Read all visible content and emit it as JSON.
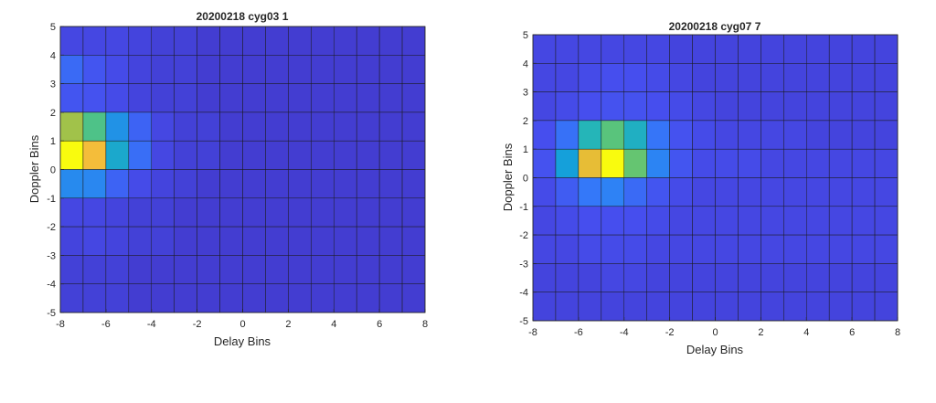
{
  "chart_data": [
    {
      "type": "heatmap",
      "title": "20200218 cyg03 1",
      "xlabel": "Delay Bins",
      "ylabel": "Doppler Bins",
      "xlim": [
        -8,
        8
      ],
      "ylim": [
        -5,
        5
      ],
      "x_ticks": [
        "-8",
        "-6",
        "-4",
        "-2",
        "0",
        "2",
        "4",
        "6",
        "8"
      ],
      "y_ticks": [
        "5",
        "4",
        "3",
        "2",
        "1",
        "0",
        "-1",
        "-2",
        "-3",
        "-4",
        "-5"
      ],
      "x_cells": [
        -8,
        -7,
        -6,
        -5,
        -4,
        -3,
        -2,
        -1,
        0,
        1,
        2,
        3,
        4,
        5,
        6,
        7
      ],
      "y_cells": [
        4,
        3,
        2,
        1,
        0,
        -1,
        -2,
        -3,
        -4,
        -5
      ],
      "values": [
        [
          0.1,
          0.1,
          0.1,
          0.09,
          0.08,
          0.08,
          0.07,
          0.07,
          0.07,
          0.07,
          0.07,
          0.07,
          0.07,
          0.07,
          0.07,
          0.07
        ],
        [
          0.2,
          0.14,
          0.11,
          0.09,
          0.08,
          0.08,
          0.07,
          0.07,
          0.07,
          0.07,
          0.07,
          0.07,
          0.07,
          0.07,
          0.07,
          0.07
        ],
        [
          0.14,
          0.13,
          0.11,
          0.09,
          0.08,
          0.08,
          0.07,
          0.07,
          0.07,
          0.07,
          0.07,
          0.07,
          0.07,
          0.07,
          0.07,
          0.07
        ],
        [
          0.72,
          0.58,
          0.33,
          0.18,
          0.1,
          0.08,
          0.08,
          0.07,
          0.07,
          0.07,
          0.07,
          0.07,
          0.07,
          0.07,
          0.07,
          0.07
        ],
        [
          1.0,
          0.88,
          0.42,
          0.21,
          0.1,
          0.08,
          0.08,
          0.07,
          0.07,
          0.07,
          0.07,
          0.07,
          0.07,
          0.07,
          0.07,
          0.07
        ],
        [
          0.3,
          0.29,
          0.18,
          0.11,
          0.09,
          0.08,
          0.07,
          0.07,
          0.07,
          0.07,
          0.07,
          0.07,
          0.07,
          0.07,
          0.07,
          0.07
        ],
        [
          0.1,
          0.1,
          0.09,
          0.08,
          0.08,
          0.07,
          0.07,
          0.07,
          0.07,
          0.07,
          0.07,
          0.07,
          0.07,
          0.07,
          0.07,
          0.07
        ],
        [
          0.09,
          0.1,
          0.09,
          0.08,
          0.08,
          0.07,
          0.07,
          0.07,
          0.07,
          0.07,
          0.07,
          0.07,
          0.07,
          0.07,
          0.07,
          0.07
        ],
        [
          0.08,
          0.08,
          0.08,
          0.07,
          0.07,
          0.07,
          0.07,
          0.07,
          0.07,
          0.07,
          0.07,
          0.07,
          0.07,
          0.07,
          0.07,
          0.07
        ],
        [
          0.08,
          0.08,
          0.08,
          0.07,
          0.07,
          0.07,
          0.07,
          0.07,
          0.07,
          0.07,
          0.07,
          0.07,
          0.07,
          0.07,
          0.07,
          0.07
        ]
      ],
      "colormap": "parula",
      "grid": true
    },
    {
      "type": "heatmap",
      "title": "20200218 cyg07 7",
      "xlabel": "Delay Bins",
      "ylabel": "Doppler Bins",
      "xlim": [
        -8,
        8
      ],
      "ylim": [
        -5,
        5
      ],
      "x_ticks": [
        "-8",
        "-6",
        "-4",
        "-2",
        "0",
        "2",
        "4",
        "6",
        "8"
      ],
      "y_ticks": [
        "5",
        "4",
        "3",
        "2",
        "1",
        "0",
        "-1",
        "-2",
        "-3",
        "-4",
        "-5"
      ],
      "x_cells": [
        -8,
        -7,
        -6,
        -5,
        -4,
        -3,
        -2,
        -1,
        0,
        1,
        2,
        3,
        4,
        5,
        6,
        7
      ],
      "y_cells": [
        4,
        3,
        2,
        1,
        0,
        -1,
        -2,
        -3,
        -4,
        -5
      ],
      "values": [
        [
          0.1,
          0.1,
          0.1,
          0.1,
          0.1,
          0.1,
          0.09,
          0.09,
          0.09,
          0.09,
          0.09,
          0.09,
          0.09,
          0.09,
          0.09,
          0.09
        ],
        [
          0.1,
          0.1,
          0.11,
          0.12,
          0.12,
          0.11,
          0.1,
          0.09,
          0.09,
          0.09,
          0.09,
          0.09,
          0.09,
          0.09,
          0.09,
          0.09
        ],
        [
          0.1,
          0.11,
          0.12,
          0.13,
          0.13,
          0.12,
          0.11,
          0.1,
          0.09,
          0.09,
          0.09,
          0.09,
          0.09,
          0.09,
          0.09,
          0.09
        ],
        [
          0.12,
          0.22,
          0.48,
          0.6,
          0.45,
          0.23,
          0.13,
          0.11,
          0.1,
          0.1,
          0.1,
          0.1,
          0.09,
          0.09,
          0.09,
          0.09
        ],
        [
          0.13,
          0.38,
          0.85,
          1.0,
          0.62,
          0.28,
          0.14,
          0.11,
          0.11,
          0.11,
          0.1,
          0.1,
          0.1,
          0.1,
          0.1,
          0.1
        ],
        [
          0.11,
          0.16,
          0.24,
          0.27,
          0.2,
          0.14,
          0.11,
          0.1,
          0.1,
          0.1,
          0.1,
          0.1,
          0.1,
          0.1,
          0.1,
          0.1
        ],
        [
          0.1,
          0.11,
          0.12,
          0.12,
          0.12,
          0.11,
          0.1,
          0.1,
          0.1,
          0.1,
          0.1,
          0.1,
          0.1,
          0.1,
          0.1,
          0.1
        ],
        [
          0.1,
          0.1,
          0.11,
          0.11,
          0.11,
          0.1,
          0.1,
          0.1,
          0.1,
          0.1,
          0.1,
          0.1,
          0.1,
          0.1,
          0.1,
          0.1
        ],
        [
          0.09,
          0.09,
          0.09,
          0.1,
          0.1,
          0.09,
          0.09,
          0.09,
          0.09,
          0.09,
          0.09,
          0.09,
          0.09,
          0.09,
          0.09,
          0.09
        ],
        [
          0.09,
          0.09,
          0.09,
          0.09,
          0.09,
          0.09,
          0.09,
          0.09,
          0.09,
          0.09,
          0.09,
          0.09,
          0.09,
          0.09,
          0.09,
          0.09
        ]
      ],
      "colormap": "parula",
      "grid": true
    }
  ]
}
